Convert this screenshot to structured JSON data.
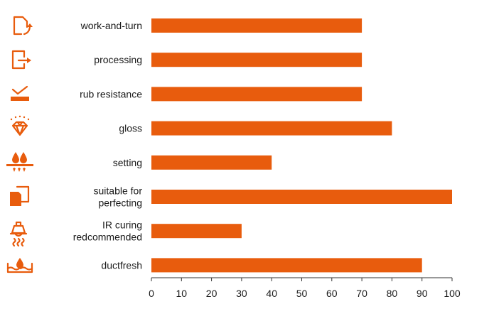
{
  "chart_data": {
    "type": "bar",
    "orientation": "horizontal",
    "categories": [
      [
        "work-and-turn"
      ],
      [
        "processing"
      ],
      [
        "rub resistance"
      ],
      [
        "gloss"
      ],
      [
        "setting"
      ],
      [
        "suitable for",
        "perfecting"
      ],
      [
        "IR curing",
        "redcommended"
      ],
      [
        "ductfresh"
      ]
    ],
    "values": [
      70,
      70,
      70,
      80,
      40,
      100,
      30,
      90
    ],
    "xlim": [
      0,
      100
    ],
    "xticks": [
      0,
      10,
      20,
      30,
      40,
      50,
      60,
      70,
      80,
      90,
      100
    ],
    "title": "",
    "xlabel": "",
    "ylabel": "",
    "grid": false,
    "bar_color": "#e85c0d",
    "icons": [
      "document-turn-arrow-icon",
      "document-exit-arrow-icon",
      "rub-check-icon",
      "diamond-gloss-icon",
      "drops-setting-icon",
      "perfecting-sheets-icon",
      "ir-lamp-icon",
      "ink-duct-drop-icon"
    ]
  }
}
